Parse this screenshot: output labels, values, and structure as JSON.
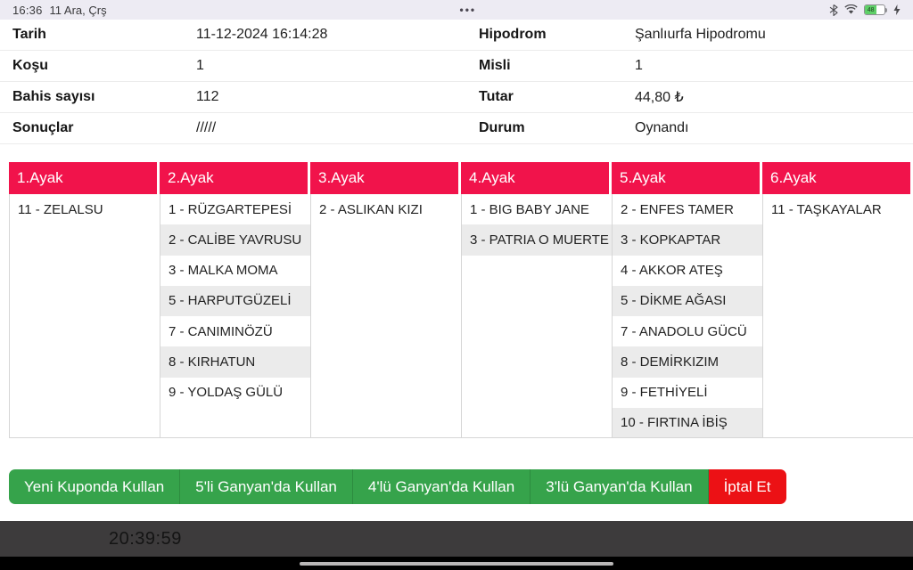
{
  "status_bar": {
    "time": "16:36",
    "date": "11 Ara, Çrş",
    "center_dots": "•••",
    "battery_level": "48"
  },
  "info": {
    "rows": [
      {
        "left_label": "Tarih",
        "left_value": "11-12-2024 16:14:28",
        "right_label": "Hipodrom",
        "right_value": "Şanlıurfa Hipodromu"
      },
      {
        "left_label": "Koşu",
        "left_value": "1",
        "right_label": "Misli",
        "right_value": "1"
      },
      {
        "left_label": "Bahis sayısı",
        "left_value": "112",
        "right_label": "Tutar",
        "right_value": "44,80 ₺"
      },
      {
        "left_label": "Sonuçlar",
        "left_value": "/////",
        "right_label": "Durum",
        "right_value": "Oynandı"
      }
    ]
  },
  "legs_table": {
    "columns": [
      {
        "header": "1.Ayak",
        "horses": [
          "11 - ZELALSU"
        ]
      },
      {
        "header": "2.Ayak",
        "horses": [
          "1 - RÜZGARTEPESİ",
          "2 - CALİBE YAVRUSU",
          "3 - MALKA MOMA",
          "5 - HARPUTGÜZELİ",
          "7 - CANIMINÖZÜ",
          "8 - KIRHATUN",
          "9 - YOLDAŞ GÜLÜ"
        ]
      },
      {
        "header": "3.Ayak",
        "horses": [
          "2 - ASLIKAN KIZI"
        ]
      },
      {
        "header": "4.Ayak",
        "horses": [
          "1 - BIG BABY JANE",
          "3 - PATRIA O MUERTE"
        ]
      },
      {
        "header": "5.Ayak",
        "horses": [
          "2 - ENFES TAMER",
          "3 - KOPKAPTAR",
          "4 - AKKOR ATEŞ",
          "5 - DİKME AĞASI",
          "7 - ANADOLU GÜCÜ",
          "8 - DEMİRKIZIM",
          "9 - FETHİYELİ",
          "10 - FIRTINA İBİŞ"
        ]
      },
      {
        "header": "6.Ayak",
        "horses": [
          "11 - TAŞKAYALAR"
        ]
      }
    ]
  },
  "actions": {
    "green_buttons": [
      "Yeni Kuponda Kullan",
      "5'li Ganyan'da Kullan",
      "4'lü Ganyan'da Kullan",
      "3'lü Ganyan'da Kullan"
    ],
    "cancel_button": "İptal Et"
  },
  "footer": {
    "timer": "20:39:59"
  },
  "colors": {
    "header_pink": "#f1134b",
    "row_alt_gray": "#ebebeb",
    "button_green": "#36a34b",
    "button_red": "#ec1115",
    "statusbar_bg": "#edebf3",
    "timerbar_bg": "#3d3b3c",
    "battery_green": "#5fd068"
  }
}
